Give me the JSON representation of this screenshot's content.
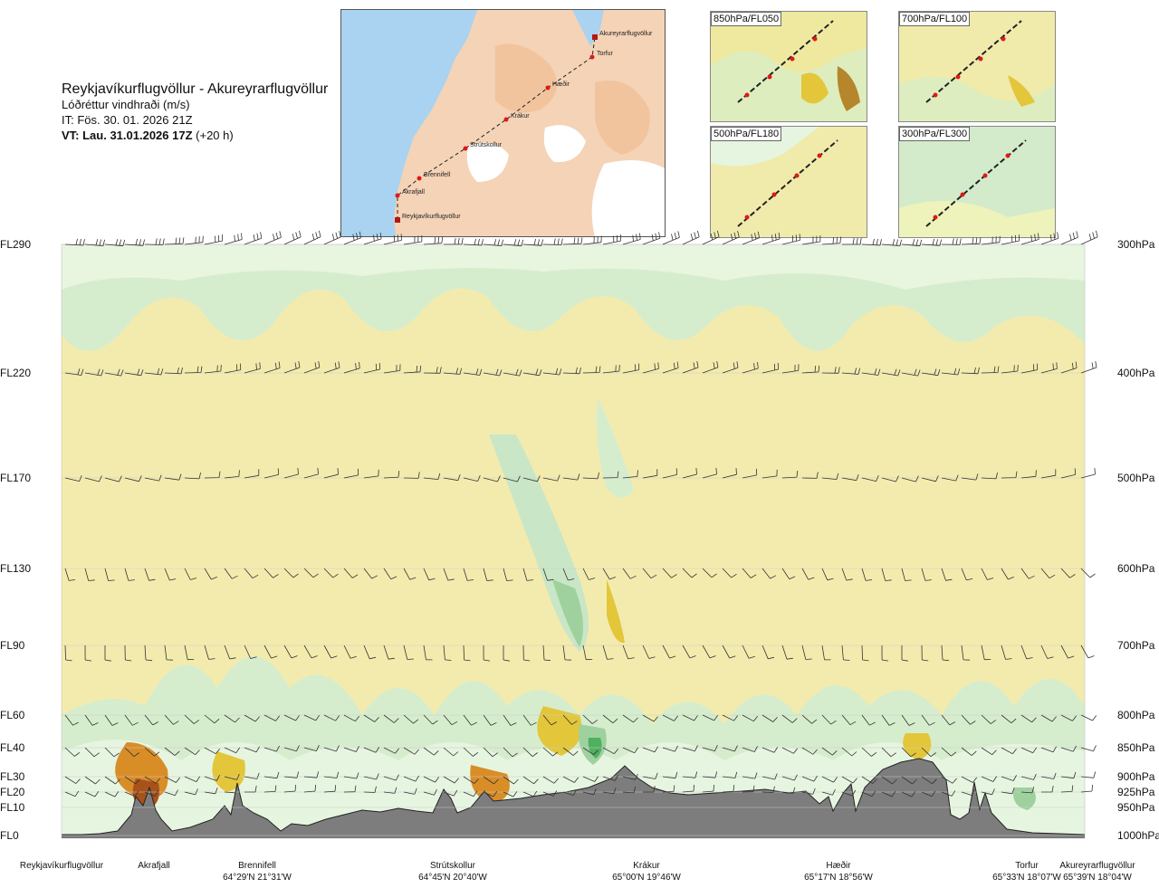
{
  "header": {
    "title": "Reykjavíkurflugvöllur - Akureyrarflugvöllur",
    "subtitle": "Lóðréttur vindhraði (m/s)",
    "issue_time": "IT: Fös. 30. 01. 2026 21Z",
    "valid_prefix": "VT: Lau. 31.01.2026 17Z",
    "valid_suffix": "(+20 h)"
  },
  "route_map": {
    "waypoints": [
      {
        "label": "Akureyrarflugvöllur"
      },
      {
        "label": "Torfur"
      },
      {
        "label": "Hæðir"
      },
      {
        "label": "Krákur"
      },
      {
        "label": "Strútskollur"
      },
      {
        "label": "Brennifell"
      },
      {
        "label": "Akrafjall"
      },
      {
        "label": "Reykjavíkurflugvöllur"
      }
    ]
  },
  "insets": [
    {
      "label": "850hPa/FL050"
    },
    {
      "label": "700hPa/FL100"
    },
    {
      "label": "500hPa/FL180"
    },
    {
      "label": "300hPa/FL300"
    }
  ],
  "levels": [
    {
      "fl": "FL290",
      "hpa": "300hPa"
    },
    {
      "fl": "FL220",
      "hpa": "400hPa"
    },
    {
      "fl": "FL170",
      "hpa": "500hPa"
    },
    {
      "fl": "FL130",
      "hpa": "600hPa"
    },
    {
      "fl": "FL90",
      "hpa": "700hPa"
    },
    {
      "fl": "FL60",
      "hpa": "800hPa"
    },
    {
      "fl": "FL40",
      "hpa": "850hPa"
    },
    {
      "fl": "FL30",
      "hpa": "900hPa"
    },
    {
      "fl": "FL20",
      "hpa": "925hPa"
    },
    {
      "fl": "FL10",
      "hpa": "950hPa"
    },
    {
      "fl": "FL0",
      "hpa": "1000hPa"
    }
  ],
  "locations": [
    {
      "name": "Reykjavíkurflugvöllur",
      "coord": ""
    },
    {
      "name": "Akrafjall",
      "coord": ""
    },
    {
      "name": "Brennifell",
      "coord": "64°29'N 21°31'W"
    },
    {
      "name": "Strútskollur",
      "coord": "64°45'N 20°40'W"
    },
    {
      "name": "Krákur",
      "coord": "65°00'N 19°46'W"
    },
    {
      "name": "Hæðir",
      "coord": "65°17'N 18°56'W"
    },
    {
      "name": "Torfur",
      "coord": "65°33'N 18°07'W"
    },
    {
      "name": "Akureyrarflugvöllur",
      "coord": "65°39'N 18°04'W"
    }
  ],
  "colors": {
    "sea": "#a9d3f1",
    "land": "#f3c7a3",
    "ice": "#ffffff",
    "updraft_weak": "#eef7b8",
    "updraft": "#f3e990",
    "updraft_strong": "#e3c63a",
    "updraft_stronger": "#d98d27",
    "updraft_max": "#a8521b",
    "downdraft_weak": "#e6f5e0",
    "downdraft": "#c9e6c7",
    "downdraft_strong": "#9fd19f",
    "downdraft_max": "#4fb060",
    "terrain": "#7d7d7d",
    "route": "#222222",
    "waypoint": "#e01818"
  }
}
